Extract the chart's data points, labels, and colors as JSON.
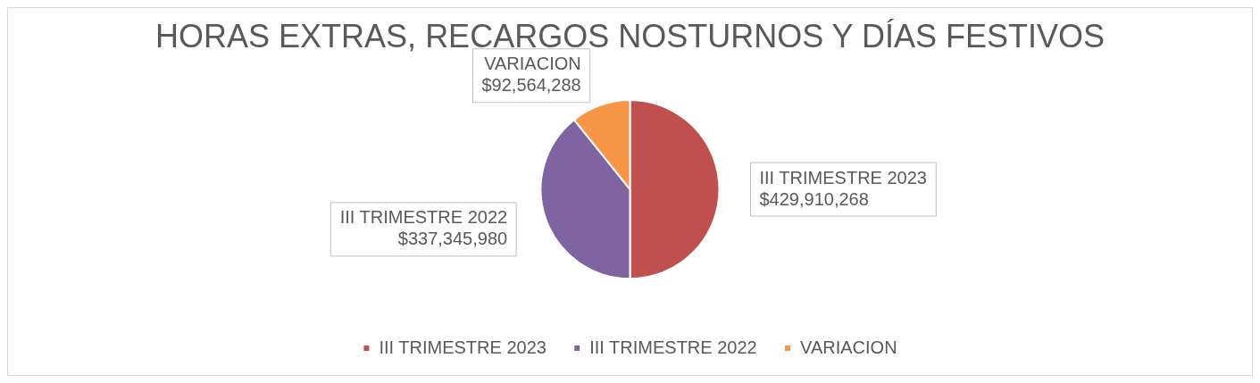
{
  "chart_data": {
    "type": "pie",
    "title": "HORAS EXTRAS, RECARGOS NOSTURNOS Y DÍAS FESTIVOS",
    "categories": [
      "III TRIMESTRE 2023",
      "III TRIMESTRE 2022",
      "VARIACION"
    ],
    "values": [
      429910268,
      337345980,
      92564288
    ],
    "value_labels": [
      "$429,910,268",
      "$337,345,980",
      "$92,564,288"
    ],
    "colors": [
      "#c0504d",
      "#8064a2",
      "#f79646"
    ],
    "legend": "bottom"
  }
}
